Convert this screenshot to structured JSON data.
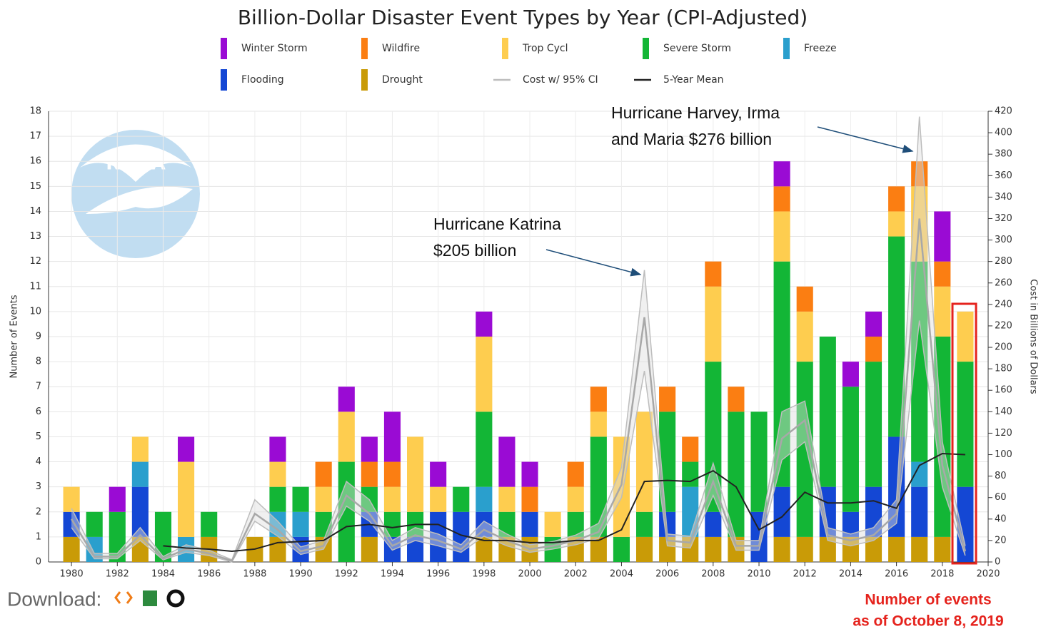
{
  "chart_data": {
    "type": "bar",
    "title": "Billion-Dollar Disaster Event Types by Year (CPI-Adjusted)",
    "y_label": "Number of Events",
    "y2_label": "Cost in Billions of Dollars",
    "logo_text": "NOAA",
    "x": [
      1980,
      1981,
      1982,
      1983,
      1984,
      1985,
      1986,
      1987,
      1988,
      1989,
      1990,
      1991,
      1992,
      1993,
      1994,
      1995,
      1996,
      1997,
      1998,
      1999,
      2000,
      2001,
      2002,
      2003,
      2004,
      2005,
      2006,
      2007,
      2008,
      2009,
      2010,
      2011,
      2012,
      2013,
      2014,
      2015,
      2016,
      2017,
      2018,
      2019
    ],
    "xlim": [
      1979,
      2020
    ],
    "xticks": [
      1980,
      1982,
      1984,
      1986,
      1988,
      1990,
      1992,
      1994,
      1996,
      1998,
      2000,
      2002,
      2004,
      2006,
      2008,
      2010,
      2012,
      2014,
      2016,
      2018,
      2020
    ],
    "ylim": [
      0,
      18
    ],
    "yticks": [
      0,
      1,
      2,
      3,
      4,
      5,
      6,
      7,
      8,
      9,
      10,
      11,
      12,
      13,
      14,
      15,
      16,
      17,
      18
    ],
    "y2lim": [
      0,
      420
    ],
    "y2ticks": [
      0,
      20,
      40,
      60,
      80,
      100,
      120,
      140,
      160,
      180,
      200,
      220,
      240,
      260,
      280,
      300,
      320,
      340,
      360,
      380,
      400,
      420
    ],
    "grid": true,
    "series": [
      {
        "name": "Winter Storm",
        "color": "#9a0bd4",
        "values": [
          0,
          0,
          1,
          0,
          0,
          1,
          0,
          0,
          0,
          1,
          0,
          0,
          1,
          1,
          2,
          0,
          1,
          0,
          1,
          2,
          1,
          0,
          0,
          0,
          0,
          0,
          0,
          0,
          0,
          0,
          0,
          1,
          0,
          0,
          1,
          1,
          0,
          0,
          2,
          0
        ]
      },
      {
        "name": "Wildfire",
        "color": "#fb7e12",
        "values": [
          0,
          0,
          0,
          0,
          0,
          0,
          0,
          0,
          0,
          0,
          0,
          1,
          0,
          1,
          1,
          0,
          0,
          0,
          0,
          0,
          1,
          0,
          1,
          1,
          0,
          0,
          1,
          1,
          1,
          1,
          0,
          1,
          1,
          0,
          0,
          1,
          1,
          1,
          1,
          0
        ]
      },
      {
        "name": "Trop Cycl",
        "color": "#fecd4f",
        "values": [
          1,
          0,
          0,
          1,
          0,
          3,
          0,
          0,
          0,
          1,
          0,
          1,
          2,
          0,
          1,
          3,
          1,
          0,
          3,
          1,
          0,
          1,
          1,
          1,
          4,
          4,
          0,
          0,
          3,
          0,
          0,
          2,
          2,
          0,
          0,
          0,
          1,
          3,
          2,
          2
        ]
      },
      {
        "name": "Severe Storm",
        "color": "#13b636",
        "values": [
          0,
          1,
          2,
          0,
          2,
          0,
          1,
          0,
          0,
          1,
          1,
          1,
          4,
          1,
          1,
          1,
          0,
          1,
          3,
          1,
          0,
          1,
          1,
          4,
          1,
          1,
          4,
          1,
          6,
          5,
          4,
          9,
          7,
          6,
          5,
          5,
          8,
          8,
          8,
          5
        ]
      },
      {
        "name": "Freeze",
        "color": "#2a9fcd",
        "values": [
          0,
          1,
          0,
          1,
          0,
          1,
          0,
          0,
          0,
          1,
          1,
          0,
          0,
          0,
          0,
          0,
          0,
          0,
          1,
          0,
          0,
          0,
          0,
          0,
          0,
          0,
          0,
          2,
          0,
          0,
          0,
          0,
          0,
          0,
          0,
          0,
          0,
          1,
          0,
          0
        ]
      },
      {
        "name": "Flooding",
        "color": "#1447d4",
        "values": [
          1,
          0,
          0,
          2,
          0,
          0,
          0,
          0,
          0,
          0,
          1,
          0,
          0,
          1,
          1,
          1,
          2,
          2,
          1,
          0,
          1,
          0,
          0,
          0,
          0,
          0,
          1,
          0,
          1,
          0,
          2,
          2,
          0,
          2,
          1,
          2,
          4,
          2,
          0,
          3
        ]
      },
      {
        "name": "Drought",
        "color": "#c99b07",
        "values": [
          1,
          0,
          0,
          1,
          0,
          0,
          1,
          0,
          1,
          1,
          0,
          1,
          0,
          1,
          0,
          0,
          0,
          0,
          1,
          1,
          1,
          0,
          1,
          1,
          0,
          1,
          1,
          1,
          1,
          1,
          0,
          1,
          1,
          1,
          1,
          1,
          1,
          1,
          1,
          0
        ]
      },
      {
        "name": "Cost w/ 95% CI",
        "type": "line",
        "axis": "y2",
        "color": "#bdbdbd",
        "values": [
          40,
          5,
          5,
          25,
          3,
          12,
          8,
          1,
          45,
          30,
          10,
          15,
          62,
          45,
          15,
          25,
          20,
          12,
          30,
          20,
          12,
          15,
          20,
          28,
          72,
          228,
          20,
          18,
          75,
          15,
          15,
          115,
          132,
          25,
          20,
          25,
          45,
          320,
          90,
          10
        ],
        "ci_low": [
          32,
          3,
          3,
          20,
          2,
          9,
          6,
          0,
          38,
          24,
          7,
          12,
          52,
          38,
          11,
          20,
          15,
          9,
          24,
          15,
          9,
          12,
          16,
          22,
          60,
          178,
          15,
          13,
          62,
          11,
          11,
          95,
          112,
          20,
          15,
          20,
          36,
          225,
          70,
          6
        ],
        "ci_high": [
          50,
          8,
          8,
          32,
          5,
          16,
          11,
          2,
          58,
          38,
          14,
          20,
          75,
          58,
          20,
          32,
          26,
          16,
          38,
          26,
          16,
          19,
          25,
          36,
          88,
          272,
          26,
          24,
          92,
          20,
          20,
          140,
          150,
          32,
          26,
          32,
          58,
          415,
          112,
          15
        ]
      },
      {
        "name": "5-Year Mean",
        "type": "line",
        "axis": "y2",
        "color": "#222222",
        "values": [
          null,
          null,
          null,
          null,
          15,
          13,
          12,
          10,
          12,
          18,
          19,
          20,
          33,
          35,
          32,
          35,
          35,
          25,
          20,
          20,
          18,
          18,
          20,
          20,
          30,
          75,
          76,
          75,
          85,
          70,
          30,
          42,
          65,
          55,
          55,
          57,
          50,
          90,
          101,
          100
        ]
      }
    ],
    "annotations": [
      {
        "lines": [
          "Hurricane Harvey, Irma",
          "and Maria $276 billion"
        ]
      },
      {
        "lines": [
          "Hurricane Katrina",
          "$205 billion"
        ]
      }
    ],
    "download_label": "Download:",
    "note": [
      "Number of events",
      "as of October 8, 2019"
    ]
  }
}
